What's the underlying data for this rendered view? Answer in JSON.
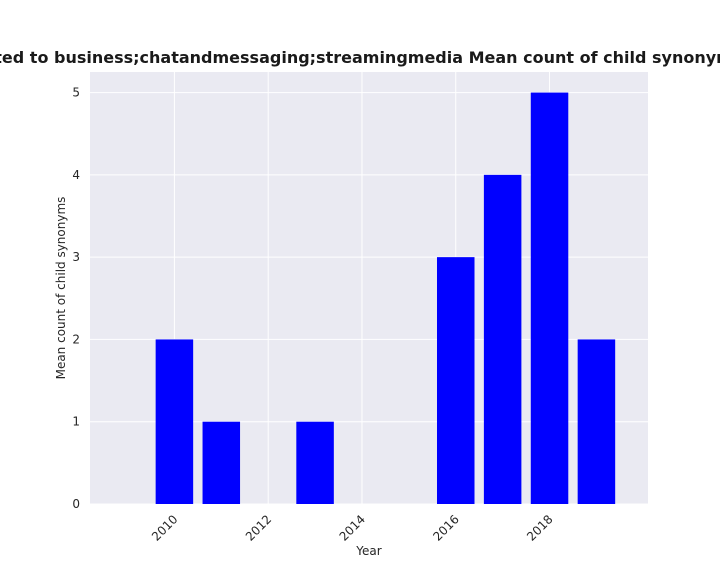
{
  "chart_data": {
    "type": "bar",
    "title": "e related to business;chatandmessaging;streamingmedia Mean count of child synonyms in pri",
    "xlabel": "Year",
    "ylabel": "Mean count of child synonyms",
    "categories": [
      2010,
      2011,
      2013,
      2016,
      2017,
      2018,
      2019
    ],
    "values": [
      2,
      1,
      1,
      3,
      4,
      5,
      2
    ],
    "xlim": [
      2008.2,
      2020.1
    ],
    "ylim": [
      0,
      5.25
    ],
    "xticks": [
      "2010",
      "2012",
      "2014",
      "2016",
      "2018"
    ],
    "yticks": [
      "0",
      "1",
      "2",
      "3",
      "4",
      "5"
    ],
    "bar_color": "#0000ff",
    "plot_background": "#eaeaf2",
    "grid_color": "#ffffff",
    "grid": true
  }
}
